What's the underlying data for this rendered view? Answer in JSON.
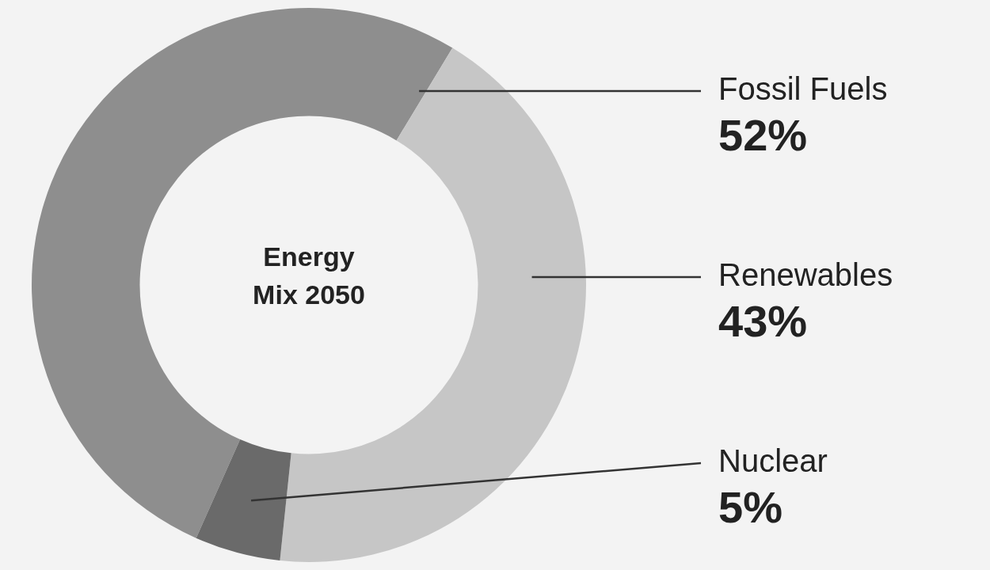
{
  "chart_data": {
    "type": "donut",
    "title": "Energy Mix 2050",
    "categories": [
      "Fossil Fuels",
      "Renewables",
      "Nuclear"
    ],
    "values": [
      52,
      43,
      5
    ],
    "value_labels": [
      "52%",
      "43%",
      "5%"
    ],
    "colors": [
      "#8e8e8e",
      "#c6c6c6",
      "#6a6a6a"
    ],
    "legend": false
  }
}
